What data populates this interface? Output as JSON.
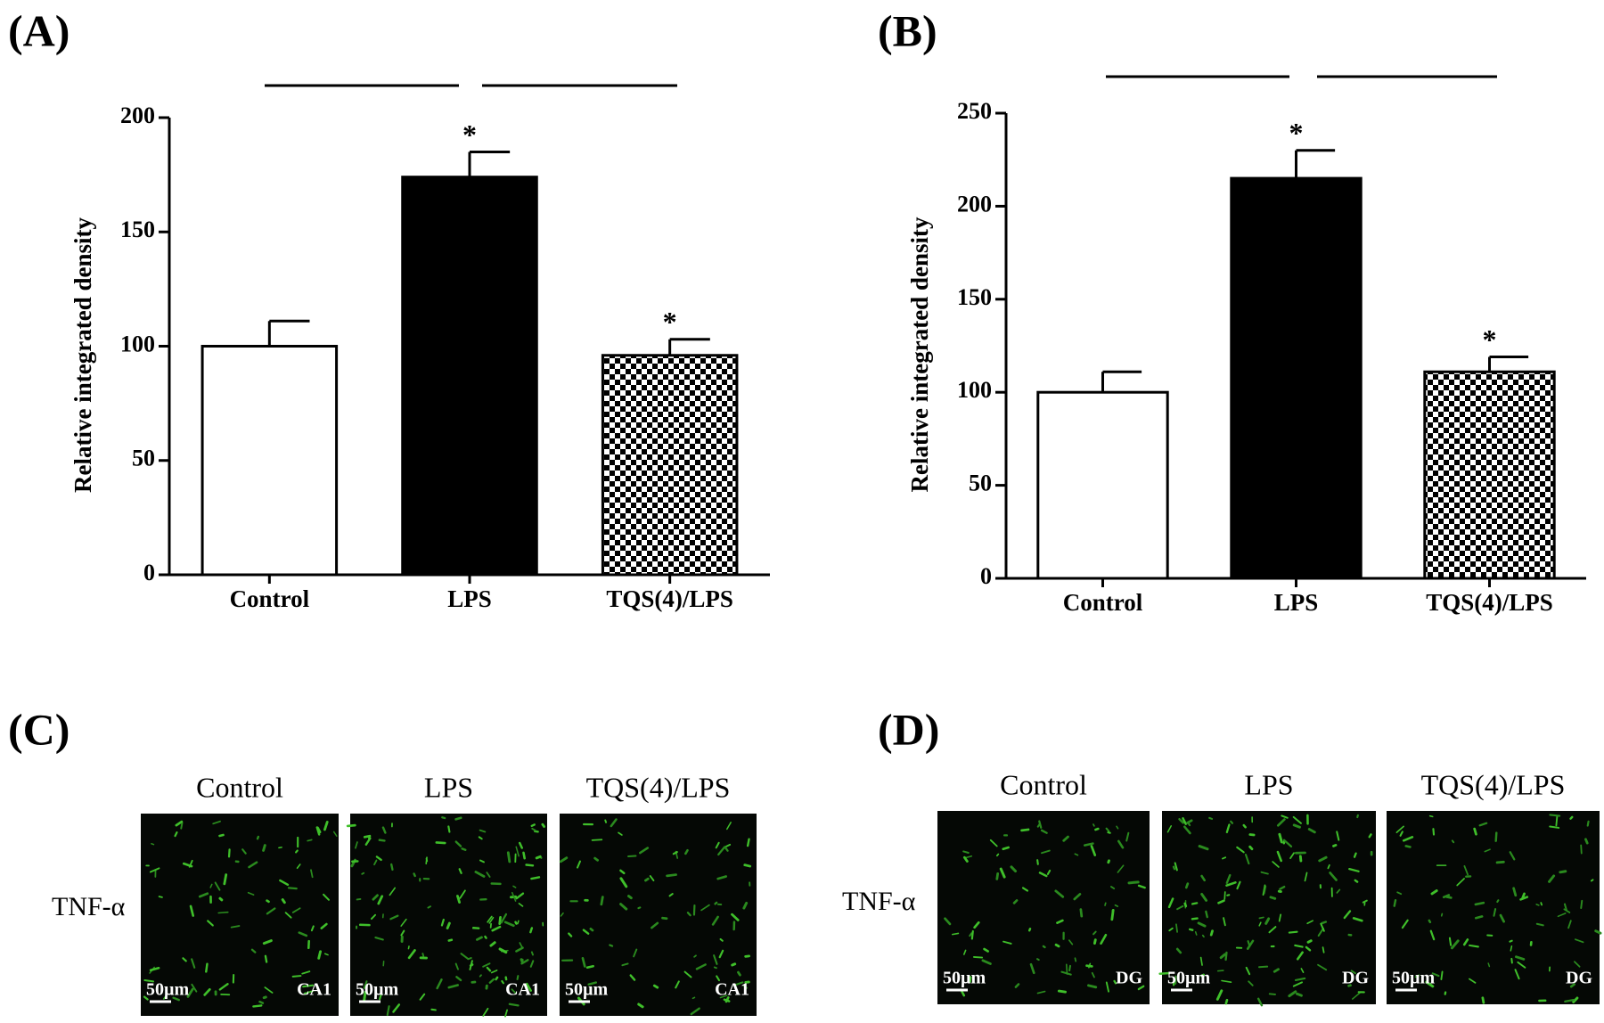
{
  "chart_data": [
    {
      "type": "bar",
      "panel_label": "(A)",
      "ylabel": "Relative integrated density",
      "categories": [
        "Control",
        "LPS",
        "TQS(4)/LPS"
      ],
      "values": [
        100,
        174,
        96
      ],
      "errors": [
        11,
        11,
        7
      ],
      "fills": [
        "#ffffff",
        "#000000",
        "checkerboard"
      ],
      "significance": [
        null,
        "*",
        "*"
      ],
      "ylim": [
        0,
        200
      ],
      "yticks": [
        0,
        50,
        100,
        150,
        200
      ]
    },
    {
      "type": "bar",
      "panel_label": "(B)",
      "ylabel": "Relative integrated density",
      "categories": [
        "Control",
        "LPS",
        "TQS(4)/LPS"
      ],
      "values": [
        100,
        215,
        111
      ],
      "errors": [
        11,
        15,
        8
      ],
      "fills": [
        "#ffffff",
        "#000000",
        "checkerboard"
      ],
      "significance": [
        null,
        "*",
        "*"
      ],
      "ylim": [
        0,
        250
      ],
      "yticks": [
        0,
        50,
        100,
        150,
        200,
        250
      ]
    }
  ],
  "panels": [
    {
      "label": "(C)",
      "columns": [
        "Control",
        "LPS",
        "TQS(4)/LPS"
      ],
      "row_label": "TNF-α",
      "scale_bar": "50µm",
      "region": "CA1"
    },
    {
      "label": "(D)",
      "columns": [
        "Control",
        "LPS",
        "TQS(4)/LPS"
      ],
      "row_label": "TNF-α",
      "scale_bar": "50µm",
      "region": "DG"
    }
  ]
}
